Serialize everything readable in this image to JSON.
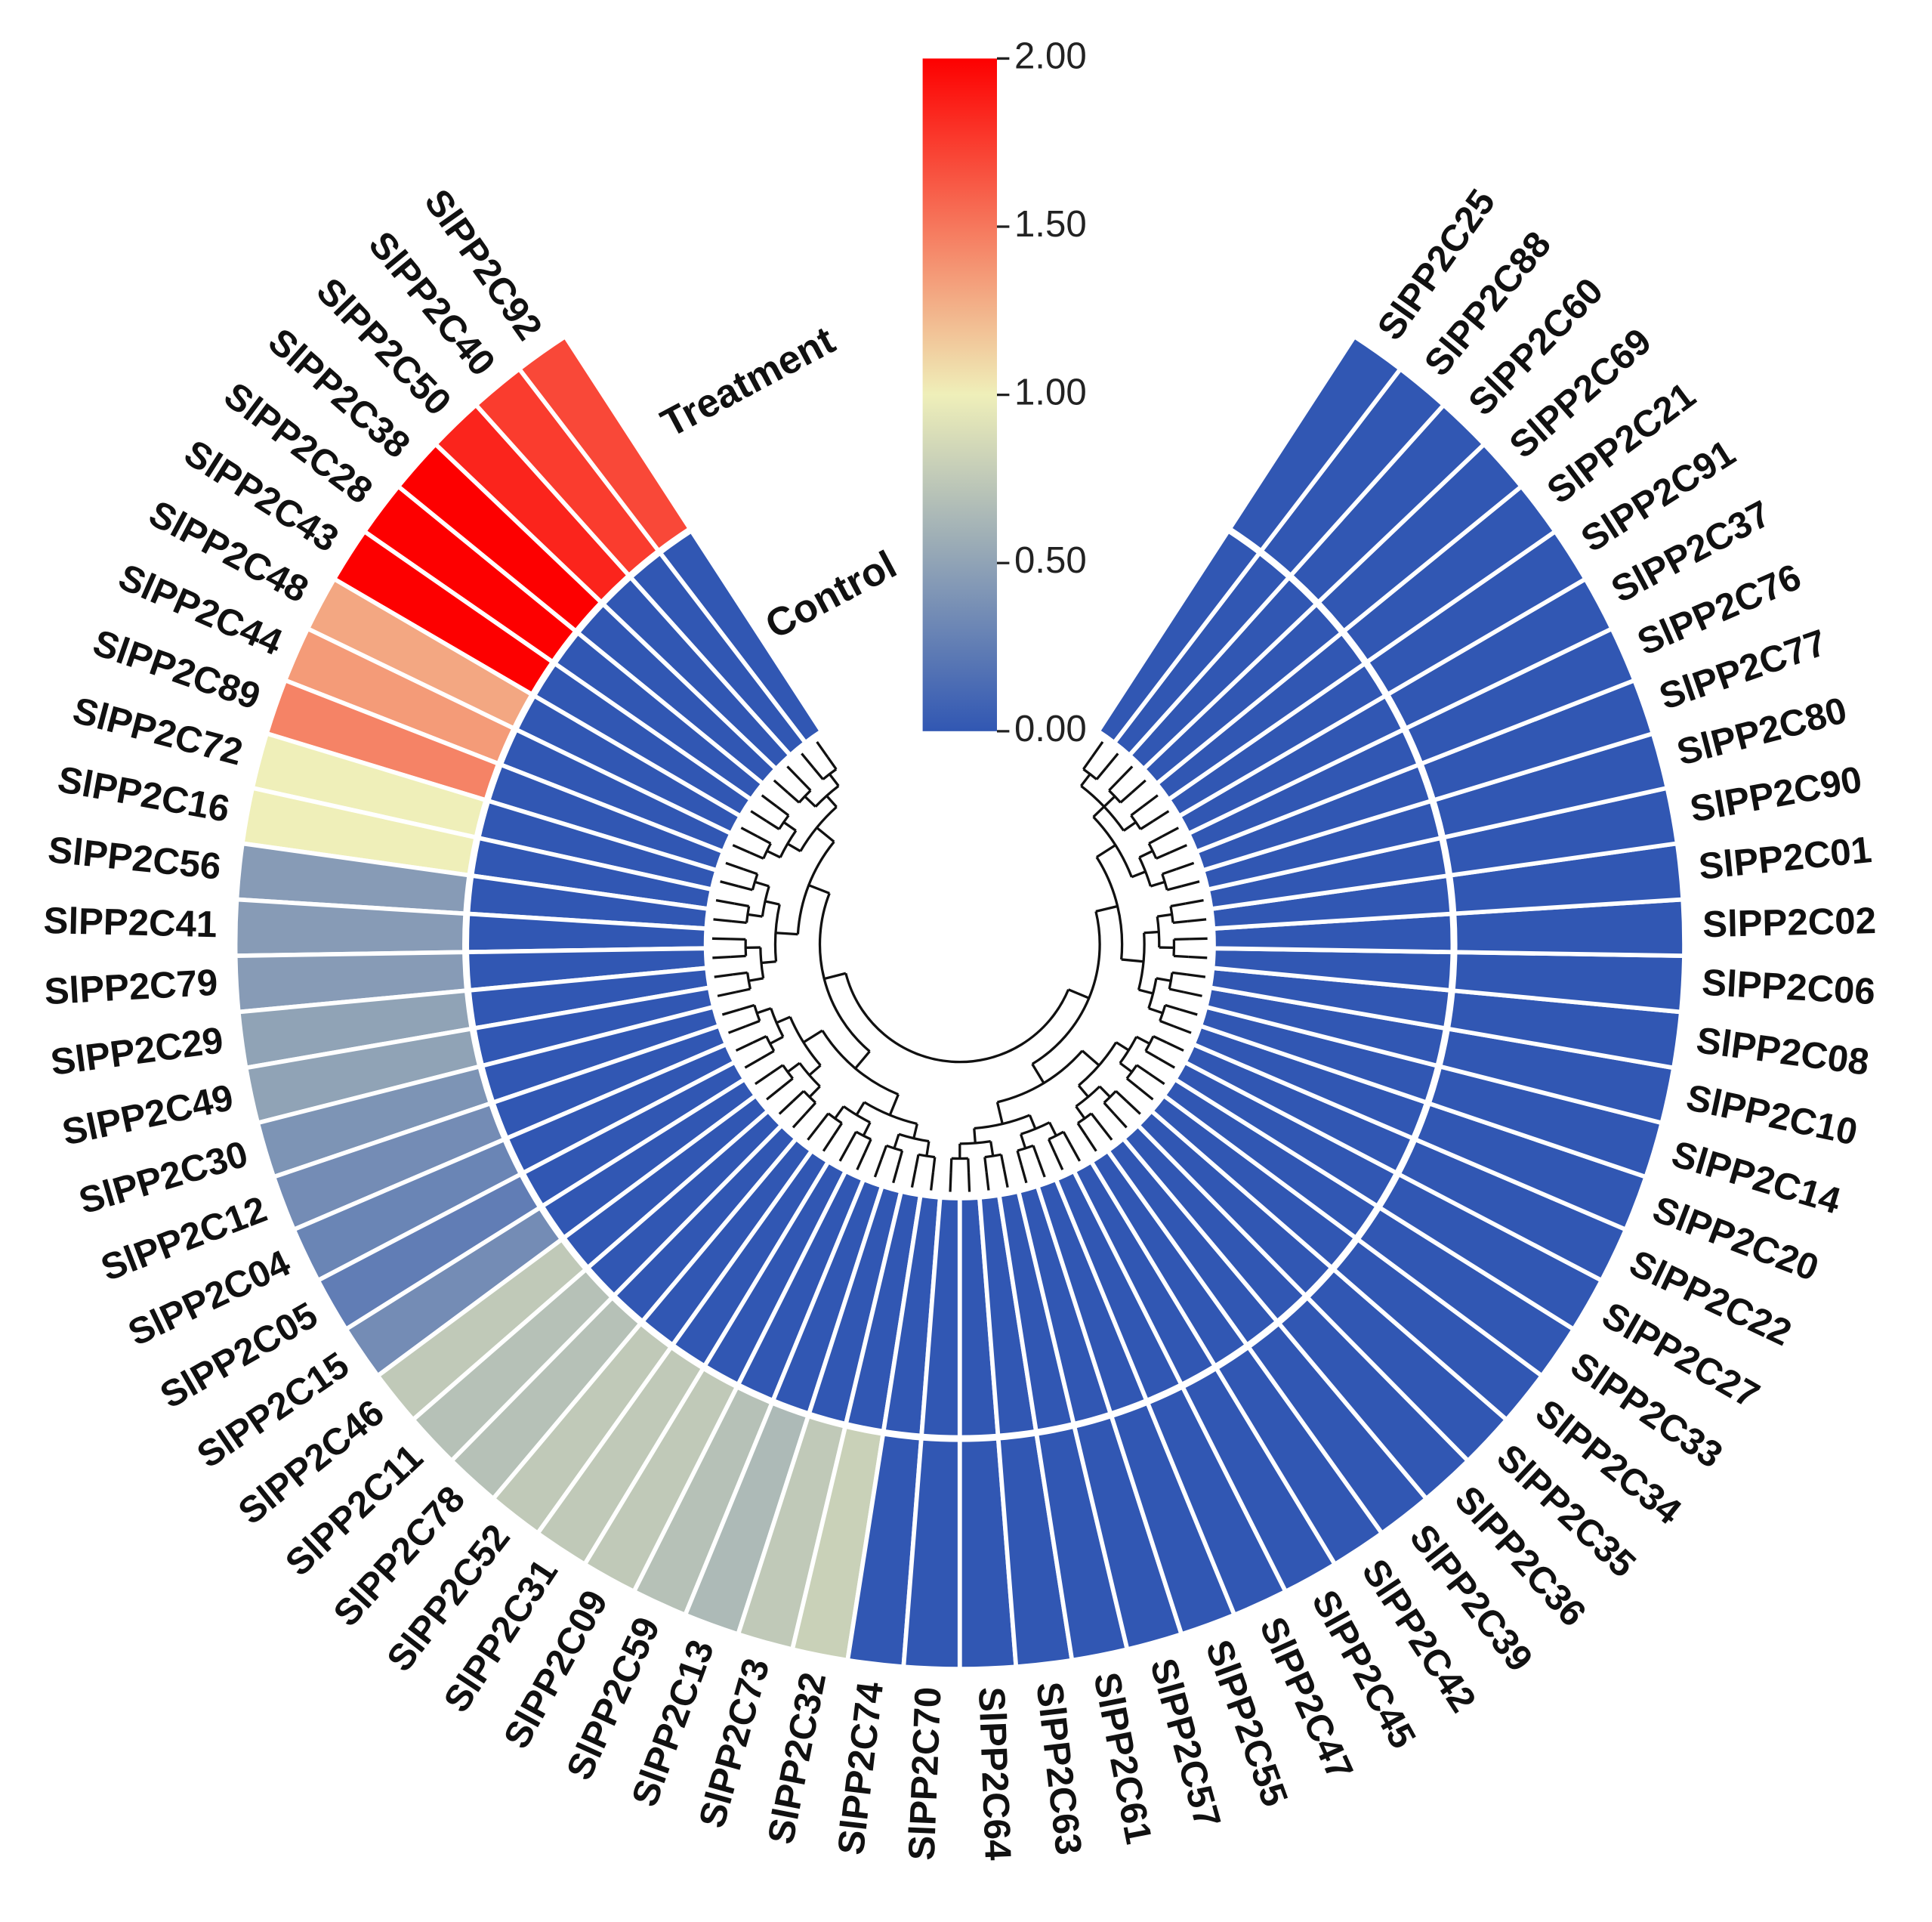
{
  "chart_data": {
    "type": "circular-heatmap",
    "categories": [
      "SlPP2C92",
      "SlPP2C40",
      "SlPP2C50",
      "SlPP2C38",
      "SlPP2C28",
      "SlPP2C43",
      "SlPP2C48",
      "SlPP2C44",
      "SlPP2C89",
      "SlPP2C72",
      "SlPP2C16",
      "SlPP2C56",
      "SlPP2C41",
      "SlPP2C79",
      "SlPP2C29",
      "SlPP2C49",
      "SlPP2C30",
      "SlPP2C12",
      "SlPP2C04",
      "SlPP2C05",
      "SlPP2C15",
      "SlPP2C46",
      "SlPP2C11",
      "SlPP2C78",
      "SlPP2C52",
      "SlPP2C31",
      "SlPP2C09",
      "SlPP2C59",
      "SlPP2C13",
      "SlPP2C73",
      "SlPP2C32",
      "SlPP2C74",
      "SlPP2C70",
      "SlPP2C64",
      "SlPP2C63",
      "SlPP2C61",
      "SlPP2C57",
      "SlPP2C55",
      "SlPP2C47",
      "SlPP2C45",
      "SlPP2C42",
      "SlPP2C39",
      "SlPP2C36",
      "SlPP2C35",
      "SlPP2C34",
      "SlPP2C33",
      "SlPP2C27",
      "SlPP2C22",
      "SlPP2C20",
      "SlPP2C14",
      "SlPP2C10",
      "SlPP2C08",
      "SlPP2C06",
      "SlPP2C02",
      "SlPP2C01",
      "SlPP2C90",
      "SlPP2C80",
      "SlPP2C77",
      "SlPP2C76",
      "SlPP2C37",
      "SlPP2C91",
      "SlPP2C21",
      "SlPP2C69",
      "SlPP2C60",
      "SlPP2C88",
      "SlPP2C25"
    ],
    "series": [
      {
        "name": "Control",
        "values": [
          0,
          0,
          0,
          0,
          0,
          0,
          0,
          0,
          0,
          0,
          0,
          0,
          0,
          0,
          0,
          0,
          0,
          0,
          0,
          0,
          0,
          0,
          0,
          0,
          0,
          0,
          0,
          0,
          0,
          0,
          0,
          0,
          0,
          0,
          0,
          0,
          0,
          0,
          0,
          0,
          0,
          0,
          0,
          0,
          0,
          0,
          0,
          0,
          0,
          0,
          0,
          0,
          0,
          0,
          0,
          0,
          0,
          0,
          0,
          0,
          0,
          0,
          0,
          0,
          0,
          0
        ]
      },
      {
        "name": "Treatment",
        "values": [
          1.7,
          1.75,
          1.85,
          2,
          2,
          2,
          1.3,
          1.35,
          1.45,
          1,
          1,
          0.45,
          0.45,
          0.45,
          0.5,
          0.5,
          0.4,
          0.35,
          0.3,
          0.25,
          0.35,
          0.75,
          0.7,
          0.7,
          0.75,
          0.75,
          0.75,
          0.7,
          0.65,
          0.75,
          0.8,
          0,
          0,
          0,
          0,
          0,
          0,
          0,
          0,
          0,
          0,
          0,
          0,
          0,
          0,
          0,
          0,
          0,
          0,
          0,
          0,
          0,
          0,
          0,
          0,
          0,
          0,
          0,
          0,
          0,
          0,
          0,
          0,
          0,
          0,
          0
        ]
      }
    ],
    "colorscale": [
      "#3157b3",
      "#efefb9",
      "#fd0000"
    ],
    "clim": [
      0,
      2
    ],
    "cticks": [
      {
        "value": 0,
        "label": "0.00"
      },
      {
        "value": 0.5,
        "label": "0.50"
      },
      {
        "value": 1,
        "label": "1.00"
      },
      {
        "value": 1.5,
        "label": "1.50"
      },
      {
        "value": 2,
        "label": "2.00"
      }
    ]
  }
}
